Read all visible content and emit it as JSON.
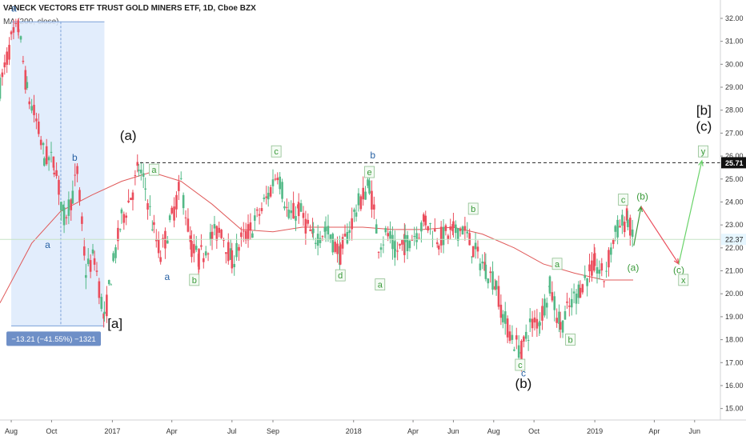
{
  "header": {
    "symbol_title": "VANECK VECTORS ETF TRUST GOLD MINERS ETF, 1D, Cboe BZX",
    "indicator": "MA (200, close)"
  },
  "colors": {
    "up": "#53b987",
    "down": "#eb4d5c",
    "ma": "#e05a5a",
    "wave_green": "#3a9a3a",
    "wave_blue": "#2962a4",
    "measure_box": "#6e8fc7",
    "measure_fill": "#ddeafc",
    "current_price_bg": "#e6f6ff",
    "resistance_bg": "#111111"
  },
  "price_axis": {
    "ticks": [
      "32.00",
      "31.00",
      "30.00",
      "29.00",
      "28.00",
      "27.00",
      "26.00",
      "25.00",
      "24.00",
      "23.00",
      "22.00",
      "21.00",
      "20.00",
      "19.00",
      "18.00",
      "17.00",
      "16.00",
      "15.00"
    ],
    "resistance_label": "25.71",
    "current_label": "22.37"
  },
  "time_axis": {
    "labels": [
      "Aug",
      "Oct",
      "2017",
      "Apr",
      "Jul",
      "Sep",
      "2018",
      "Apr",
      "Jun",
      "Aug",
      "Oct",
      "2019",
      "Apr",
      "Jun"
    ]
  },
  "measure": {
    "text": "−13.21 (−41.55%) −1321"
  },
  "chart_data": {
    "type": "candlestick",
    "title": "VANECK VECTORS ETF TRUST GOLD MINERS ETF, 1D, Cboe BZX",
    "ylim": [
      14.5,
      32.8
    ],
    "xlim": [
      "2016-07-15",
      "2019-07-10"
    ],
    "grid": false,
    "series": [
      {
        "name": "MA (200, close)",
        "x": [
          "2016-07-15",
          "2016-09-01",
          "2016-10-15",
          "2016-12-01",
          "2017-01-15",
          "2017-03-01",
          "2017-04-15",
          "2017-06-01",
          "2017-07-15",
          "2017-09-01",
          "2017-10-15",
          "2017-12-01",
          "2018-01-15",
          "2018-03-01",
          "2018-04-15",
          "2018-06-01",
          "2018-07-15",
          "2018-09-01",
          "2018-10-15",
          "2018-12-01",
          "2019-01-15",
          "2019-02-28"
        ],
        "values": [
          19.6,
          22.2,
          23.6,
          24.3,
          24.9,
          25.3,
          24.9,
          23.9,
          22.8,
          22.7,
          22.9,
          22.9,
          22.9,
          22.8,
          22.8,
          22.9,
          22.6,
          22.0,
          21.3,
          20.9,
          20.6,
          20.6
        ]
      }
    ],
    "price_path": [
      {
        "x": "2016-07-15",
        "y": 29.0
      },
      {
        "x": "2016-08-01",
        "y": 31.0
      },
      {
        "x": "2016-08-12",
        "y": 31.6
      },
      {
        "x": "2016-08-25",
        "y": 28.8
      },
      {
        "x": "2016-09-08",
        "y": 27.5
      },
      {
        "x": "2016-09-20",
        "y": 26.0
      },
      {
        "x": "2016-10-05",
        "y": 25.7
      },
      {
        "x": "2016-10-20",
        "y": 23.3
      },
      {
        "x": "2016-11-02",
        "y": 24.3
      },
      {
        "x": "2016-11-09",
        "y": 25.3
      },
      {
        "x": "2016-11-22",
        "y": 21.0
      },
      {
        "x": "2016-12-05",
        "y": 21.6
      },
      {
        "x": "2016-12-20",
        "y": 18.8
      },
      {
        "x": "2016-12-30",
        "y": 20.8
      },
      {
        "x": "2017-01-15",
        "y": 23.2
      },
      {
        "x": "2017-02-01",
        "y": 24.5
      },
      {
        "x": "2017-02-10",
        "y": 25.5
      },
      {
        "x": "2017-02-20",
        "y": 24.6
      },
      {
        "x": "2017-03-05",
        "y": 22.7
      },
      {
        "x": "2017-03-15",
        "y": 21.7
      },
      {
        "x": "2017-04-01",
        "y": 23.3
      },
      {
        "x": "2017-04-15",
        "y": 24.8
      },
      {
        "x": "2017-05-01",
        "y": 22.0
      },
      {
        "x": "2017-05-12",
        "y": 21.5
      },
      {
        "x": "2017-06-01",
        "y": 22.5
      },
      {
        "x": "2017-06-15",
        "y": 22.8
      },
      {
        "x": "2017-07-01",
        "y": 21.4
      },
      {
        "x": "2017-07-15",
        "y": 22.3
      },
      {
        "x": "2017-08-01",
        "y": 22.9
      },
      {
        "x": "2017-08-25",
        "y": 24.3
      },
      {
        "x": "2017-09-08",
        "y": 25.4
      },
      {
        "x": "2017-09-25",
        "y": 23.3
      },
      {
        "x": "2017-10-10",
        "y": 23.7
      },
      {
        "x": "2017-11-01",
        "y": 22.4
      },
      {
        "x": "2017-11-20",
        "y": 22.8
      },
      {
        "x": "2017-12-12",
        "y": 21.7
      },
      {
        "x": "2018-01-05",
        "y": 23.7
      },
      {
        "x": "2018-01-25",
        "y": 24.8
      },
      {
        "x": "2018-02-08",
        "y": 22.2
      },
      {
        "x": "2018-02-22",
        "y": 22.6
      },
      {
        "x": "2018-03-05",
        "y": 21.8
      },
      {
        "x": "2018-03-20",
        "y": 22.2
      },
      {
        "x": "2018-04-10",
        "y": 22.8
      },
      {
        "x": "2018-04-20",
        "y": 23.2
      },
      {
        "x": "2018-05-10",
        "y": 22.4
      },
      {
        "x": "2018-06-01",
        "y": 22.7
      },
      {
        "x": "2018-06-15",
        "y": 22.9
      },
      {
        "x": "2018-07-01",
        "y": 21.9
      },
      {
        "x": "2018-07-20",
        "y": 21.1
      },
      {
        "x": "2018-08-05",
        "y": 20.4
      },
      {
        "x": "2018-08-15",
        "y": 19.0
      },
      {
        "x": "2018-09-01",
        "y": 17.9
      },
      {
        "x": "2018-09-12",
        "y": 17.5
      },
      {
        "x": "2018-09-25",
        "y": 18.6
      },
      {
        "x": "2018-10-10",
        "y": 18.9
      },
      {
        "x": "2018-10-25",
        "y": 20.3
      },
      {
        "x": "2018-11-10",
        "y": 18.6
      },
      {
        "x": "2018-11-20",
        "y": 19.2
      },
      {
        "x": "2018-12-10",
        "y": 20.3
      },
      {
        "x": "2019-01-01",
        "y": 21.3
      },
      {
        "x": "2019-01-15",
        "y": 20.7
      },
      {
        "x": "2019-02-01",
        "y": 22.7
      },
      {
        "x": "2019-02-20",
        "y": 23.3
      },
      {
        "x": "2019-03-01",
        "y": 22.1
      }
    ],
    "annotations": {
      "resistance_level": 25.71,
      "current_price": 22.37,
      "projection_path": [
        {
          "x": "2019-03-01",
          "y": 22.1
        },
        {
          "x": "2019-03-12",
          "y": 23.8
        },
        {
          "x": "2019-05-08",
          "y": 21.3
        },
        {
          "x": "2019-06-12",
          "y": 25.8
        }
      ],
      "measure_range": {
        "from": "2016-08-01",
        "to": "2016-12-20",
        "change": "−13.21 (−41.55%) −1321"
      },
      "wave_labels": [
        "(a)",
        "[a]",
        "(b)",
        "[b]",
        "(c)",
        "a",
        "b",
        "c",
        "d",
        "e",
        "x",
        "y"
      ]
    }
  },
  "wave_labels": [
    {
      "id": "a1",
      "text": "a",
      "style": "plain-blue",
      "x": "2016-09-25",
      "y": 22.0
    },
    {
      "id": "b1",
      "text": "b",
      "style": "plain-blue",
      "x": "2016-11-05",
      "y": 25.8
    },
    {
      "id": "s1",
      "text": "a",
      "style": "plain-blue",
      "x": "2016-08-05",
      "y": 32.3
    },
    {
      "id": "bigA",
      "text": "(a)",
      "style": "big",
      "x": "2017-01-25",
      "y": 26.7
    },
    {
      "id": "bigAA",
      "text": "[a]",
      "style": "big",
      "x": "2017-01-05",
      "y": 18.5
    },
    {
      "id": "a2",
      "text": "a",
      "style": "boxed-green",
      "x": "2017-03-05",
      "y": 25.3
    },
    {
      "id": "a3",
      "text": "a",
      "style": "plain-blue",
      "x": "2017-03-25",
      "y": 20.6
    },
    {
      "id": "b2",
      "text": "b",
      "style": "boxed-green",
      "x": "2017-05-05",
      "y": 20.5
    },
    {
      "id": "c1",
      "text": "c",
      "style": "boxed-green",
      "x": "2017-09-06",
      "y": 26.1
    },
    {
      "id": "d1",
      "text": "d",
      "style": "boxed-green",
      "x": "2017-12-12",
      "y": 20.7
    },
    {
      "id": "b3",
      "text": "b",
      "style": "plain-blue",
      "x": "2018-01-30",
      "y": 25.9
    },
    {
      "id": "e1",
      "text": "e",
      "style": "boxed-green",
      "x": "2018-01-25",
      "y": 25.2
    },
    {
      "id": "a4",
      "text": "a",
      "style": "boxed-green",
      "x": "2018-02-10",
      "y": 20.3
    },
    {
      "id": "b4",
      "text": "b",
      "style": "boxed-green",
      "x": "2018-07-01",
      "y": 23.6
    },
    {
      "id": "c2",
      "text": "c",
      "style": "boxed-green",
      "x": "2018-09-10",
      "y": 16.8
    },
    {
      "id": "c3",
      "text": "c",
      "style": "plain-blue",
      "x": "2018-09-15",
      "y": 16.4
    },
    {
      "id": "bigB",
      "text": "(b)",
      "style": "big",
      "x": "2018-09-15",
      "y": 15.9
    },
    {
      "id": "a5",
      "text": "a",
      "style": "boxed-green",
      "x": "2018-11-05",
      "y": 21.2
    },
    {
      "id": "b5",
      "text": "b",
      "style": "boxed-green",
      "x": "2018-11-25",
      "y": 17.9
    },
    {
      "id": "c4",
      "text": "c",
      "style": "boxed-green",
      "x": "2019-02-13",
      "y": 24.0
    },
    {
      "id": "pa",
      "text": "(a)",
      "style": "plain-green",
      "x": "2019-02-28",
      "y": 21.0
    },
    {
      "id": "pb",
      "text": "(b)",
      "style": "plain-green",
      "x": "2019-03-14",
      "y": 24.1
    },
    {
      "id": "pc",
      "text": "(c)",
      "style": "plain-green",
      "x": "2019-05-08",
      "y": 20.9
    },
    {
      "id": "x1",
      "text": "x",
      "style": "boxed-green",
      "x": "2019-05-15",
      "y": 20.5
    },
    {
      "id": "y1",
      "text": "y",
      "style": "boxed-green",
      "x": "2019-06-14",
      "y": 26.1
    },
    {
      "id": "bb",
      "text": "[b]",
      "style": "big",
      "x": "2019-06-15",
      "y": 27.8
    },
    {
      "id": "bc",
      "text": "(c)",
      "style": "big",
      "x": "2019-06-15",
      "y": 27.1
    }
  ]
}
